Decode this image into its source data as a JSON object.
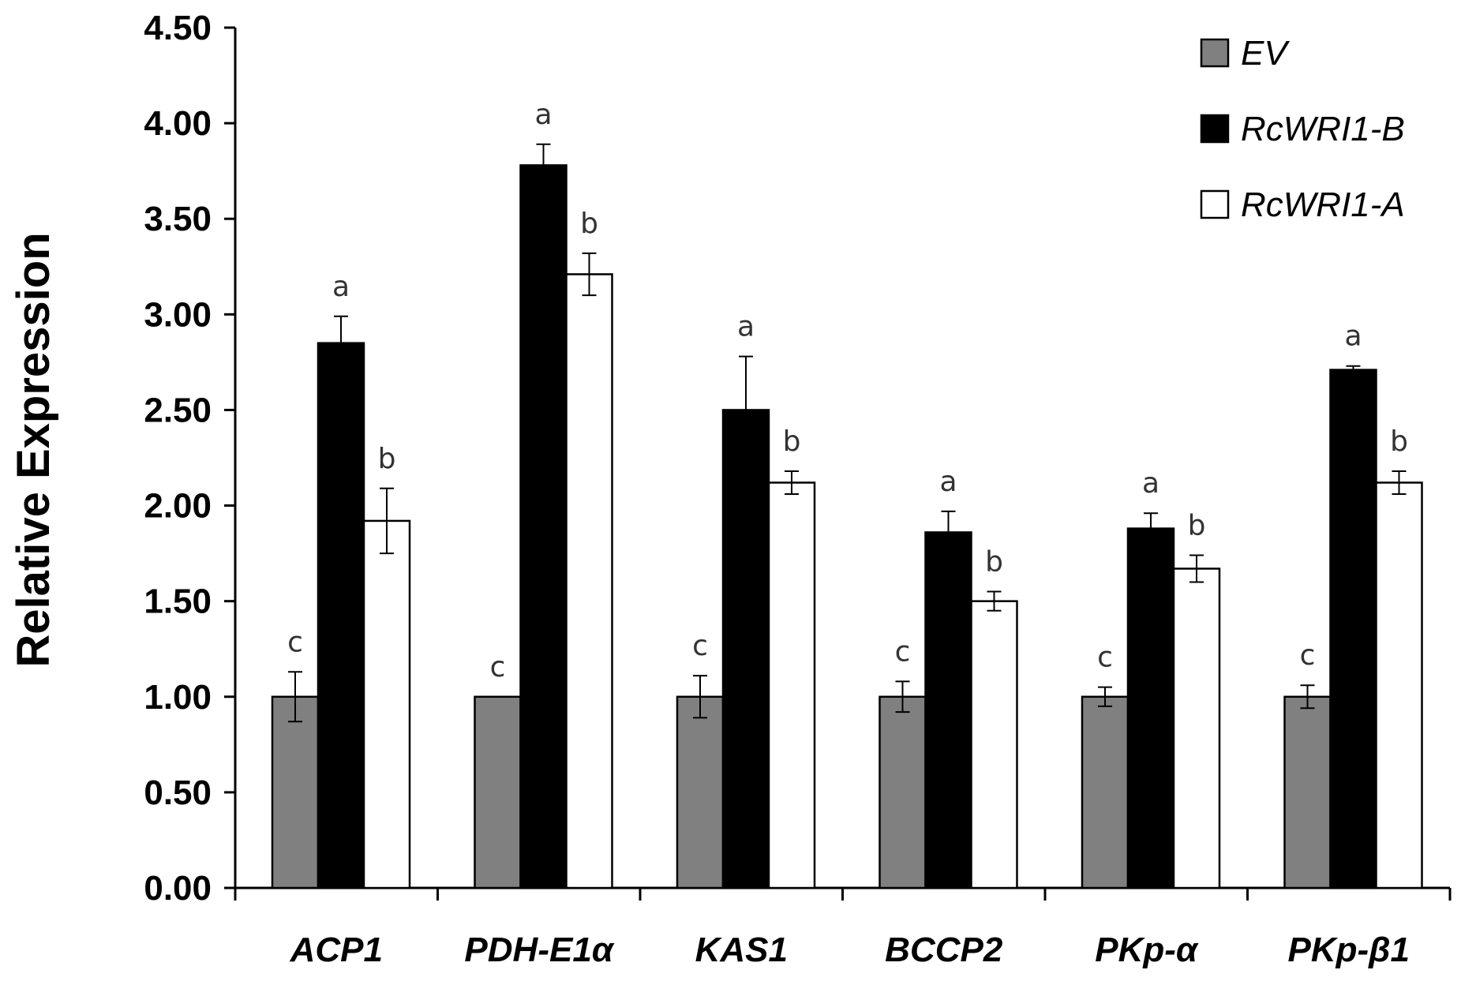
{
  "chart_data": {
    "type": "bar",
    "title": "",
    "xlabel": "",
    "ylabel": "Relative Expression",
    "ylim": [
      0,
      4.5
    ],
    "yticks": [
      "0.00",
      "0.50",
      "1.00",
      "1.50",
      "2.00",
      "2.50",
      "3.00",
      "3.50",
      "4.00",
      "4.50"
    ],
    "legend_position": "top-right",
    "grid": false,
    "categories": [
      "ACP1",
      "PDH-E1α",
      "KAS1",
      "BCCP2",
      "PKp-α",
      "PKp-β1"
    ],
    "series": [
      {
        "name": "EV",
        "color": "#808080",
        "values": [
          1.0,
          1.0,
          1.0,
          1.0,
          1.0,
          1.0
        ],
        "errors": [
          0.13,
          0.0,
          0.11,
          0.08,
          0.05,
          0.06
        ],
        "labels": [
          "c",
          "c",
          "c",
          "c",
          "c",
          "c"
        ]
      },
      {
        "name": "RcWRI1-B",
        "color": "#000000",
        "values": [
          2.85,
          3.78,
          2.5,
          1.86,
          1.88,
          2.71
        ],
        "errors": [
          0.14,
          0.11,
          0.28,
          0.11,
          0.08,
          0.02
        ],
        "labels": [
          "a",
          "a",
          "a",
          "a",
          "a",
          "a"
        ]
      },
      {
        "name": "RcWRI1-A",
        "color": "#ffffff",
        "values": [
          1.92,
          3.21,
          2.12,
          1.5,
          1.67,
          2.12
        ],
        "errors": [
          0.17,
          0.11,
          0.06,
          0.05,
          0.07,
          0.06
        ],
        "labels": [
          "b",
          "b",
          "b",
          "b",
          "b",
          "b"
        ]
      }
    ]
  }
}
